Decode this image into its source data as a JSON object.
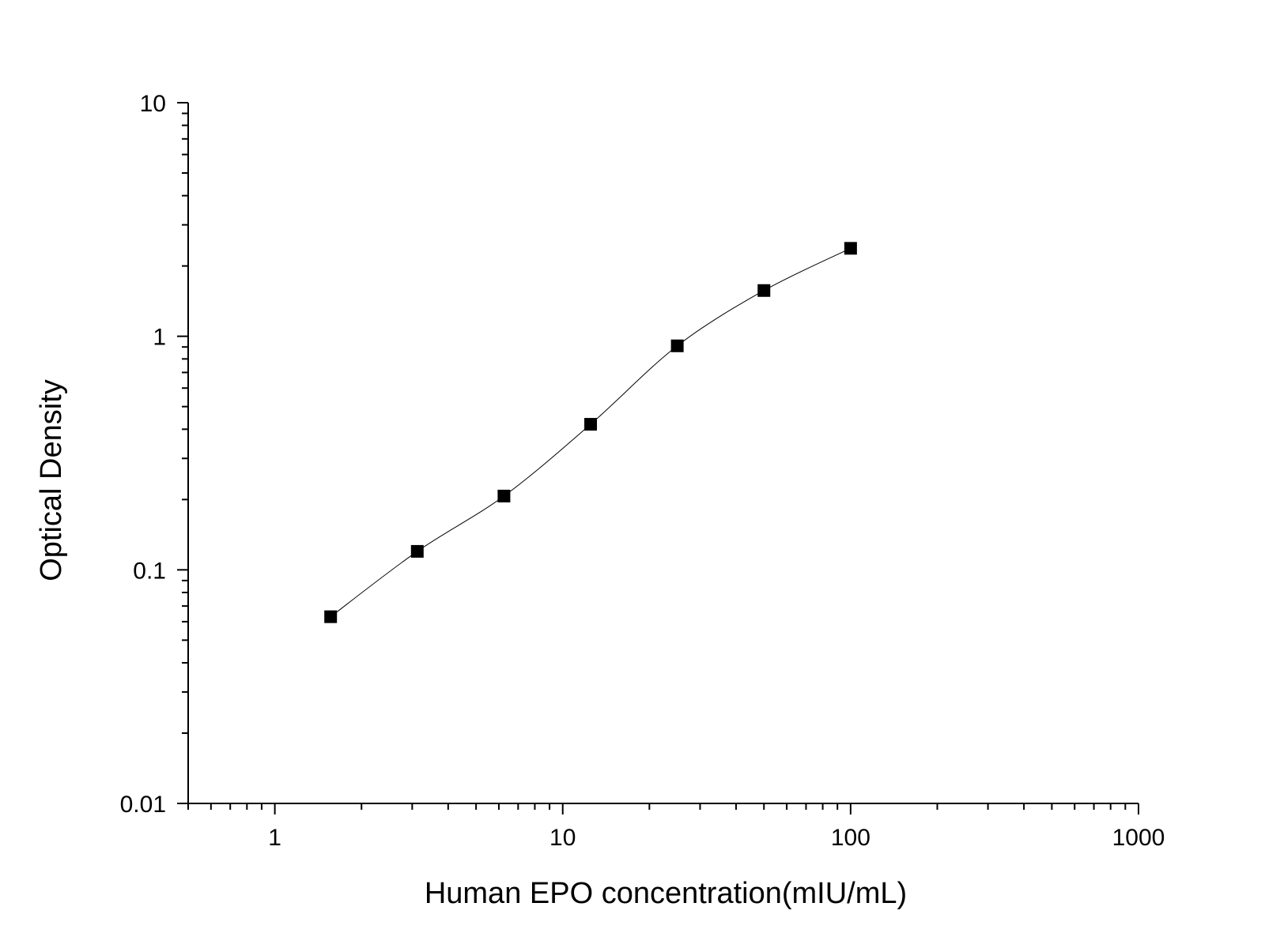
{
  "chart_data": {
    "type": "scatter",
    "title": "",
    "xlabel": "Human EPO concentration(mIU/mL)",
    "ylabel": "Optical Density",
    "xscale": "log",
    "yscale": "log",
    "xlim": [
      0.5,
      1000
    ],
    "ylim": [
      0.01,
      10
    ],
    "x_ticks": [
      "1",
      "10",
      "100",
      "1000"
    ],
    "y_ticks": [
      "0.01",
      "0.1",
      "1",
      "10"
    ],
    "grid": false,
    "series": [
      {
        "marker": "square",
        "fit_line": true,
        "x": [
          1.5625,
          3.125,
          6.25,
          12.5,
          25,
          50,
          100
        ],
        "y": [
          0.063,
          0.12,
          0.207,
          0.42,
          0.91,
          1.57,
          2.38
        ]
      }
    ],
    "colors": {
      "marker": "#000000",
      "line": "#000000",
      "axis": "#000000"
    }
  }
}
